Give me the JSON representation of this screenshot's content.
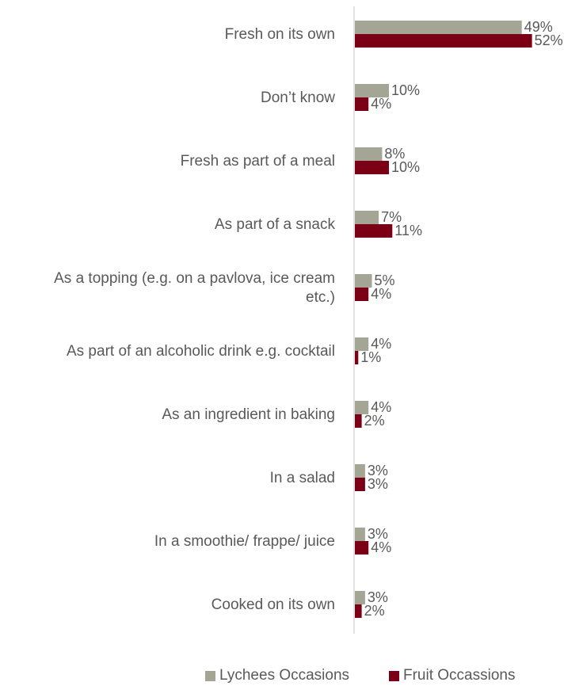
{
  "chart_data": {
    "type": "bar",
    "orientation": "horizontal",
    "categories": [
      "Fresh on its own",
      "Don’t know",
      "Fresh as part of a meal",
      "As part of a snack",
      "As a topping (e.g. on a pavlova, ice cream etc.)",
      "As part of an alcoholic drink e.g. cocktail",
      "As an ingredient in baking",
      "In a salad",
      "In a smoothie/ frappe/ juice",
      "Cooked on its own"
    ],
    "category_lines": [
      [
        "Fresh on its own"
      ],
      [
        "Don’t know"
      ],
      [
        "Fresh as part of a meal"
      ],
      [
        "As part of a snack"
      ],
      [
        "As a topping (e.g. on a pavlova, ice cream",
        "etc.)"
      ],
      [
        "As part of an alcoholic drink e.g. cocktail"
      ],
      [
        "As an ingredient in baking"
      ],
      [
        "In a salad"
      ],
      [
        "In a smoothie/ frappe/ juice"
      ],
      [
        "Cooked on its own"
      ]
    ],
    "series": [
      {
        "name": "Lychees Occasions",
        "color": "#a5a596",
        "values": [
          49,
          10,
          8,
          7,
          5,
          4,
          4,
          3,
          3,
          3
        ],
        "labels": [
          "49%",
          "10%",
          "8%",
          "7%",
          "5%",
          "4%",
          "4%",
          "3%",
          "3%",
          "3%"
        ]
      },
      {
        "name": "Fruit Occassions",
        "color": "#7b0015",
        "values": [
          52,
          4,
          10,
          11,
          4,
          1,
          2,
          3,
          4,
          2
        ],
        "labels": [
          "52%",
          "4%",
          "10%",
          "11%",
          "4%",
          "1%",
          "2%",
          "3%",
          "4%",
          "2%"
        ]
      }
    ],
    "xlim": [
      0,
      60
    ],
    "unit": "%",
    "grid": false,
    "legend_position": "bottom"
  }
}
